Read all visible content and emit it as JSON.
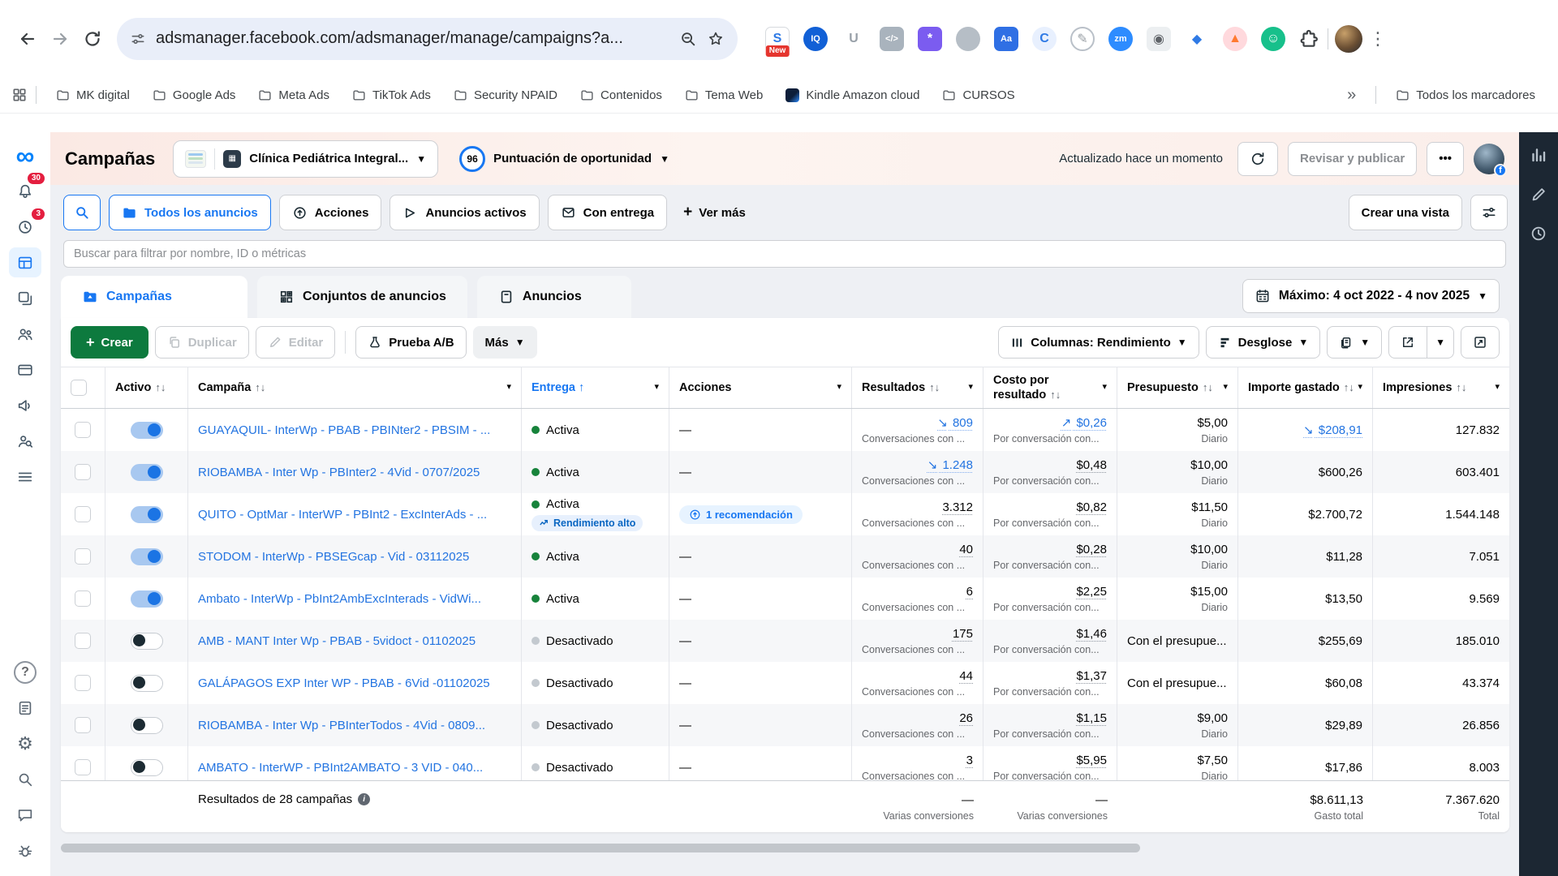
{
  "browser": {
    "url": "adsmanager.facebook.com/adsmanager/manage/campaigns?a...",
    "bookmarks": [
      "MK digital",
      "Google Ads",
      "Meta Ads",
      "TikTok Ads",
      "Security NPAID",
      "Contenidos",
      "Tema Web",
      "Kindle Amazon cloud",
      "CURSOS"
    ],
    "bookmarks_overflow": "»",
    "all_bookmarks_label": "Todos los marcadores",
    "extensions": [
      {
        "name": "sider",
        "glyph": "S",
        "shape": "square",
        "bg": "#ffffff",
        "fg": "#2f7ae5",
        "badge": "New"
      },
      {
        "name": "iq",
        "glyph": "IQ",
        "shape": "circle",
        "bg": "#1160d6",
        "fg": "#ffffff"
      },
      {
        "name": "u-reader",
        "glyph": "U",
        "shape": "plain",
        "bg": "",
        "fg": "#98a0a8"
      },
      {
        "name": "code-inspector",
        "glyph": "</>",
        "shape": "square",
        "bg": "#a9b3bd",
        "fg": "#ffffff"
      },
      {
        "name": "ai-burst",
        "glyph": "*",
        "shape": "square",
        "bg": "#7b5cf0",
        "fg": "#ffffff"
      },
      {
        "name": "pump",
        "glyph": "",
        "shape": "circle",
        "bg": "#b6bec6",
        "fg": "#ffffff"
      },
      {
        "name": "translate",
        "glyph": "Aa",
        "shape": "square",
        "bg": "#2f6fe4",
        "fg": "#ffffff"
      },
      {
        "name": "c-ring",
        "glyph": "C",
        "shape": "circle",
        "bg": "#e8f0fe",
        "fg": "#2f7ae5"
      },
      {
        "name": "pencil-tool",
        "glyph": "✎",
        "shape": "ring",
        "bg": "#ffffff",
        "fg": "#9aa0a6"
      },
      {
        "name": "zoom",
        "glyph": "zm",
        "shape": "circle",
        "bg": "#2d8cff",
        "fg": "#ffffff"
      },
      {
        "name": "photos",
        "glyph": "◉",
        "shape": "square",
        "bg": "#eceff1",
        "fg": "#5f6368"
      },
      {
        "name": "price-tag",
        "glyph": "◆",
        "shape": "plain",
        "bg": "",
        "fg": "#2f7ae5"
      },
      {
        "name": "flame",
        "glyph": "▲",
        "shape": "circle",
        "bg": "#ffd9dd",
        "fg": "#ff7a30"
      },
      {
        "name": "grammar-smile",
        "glyph": "☺",
        "shape": "circle",
        "bg": "#17c08b",
        "fg": "#ffffff"
      }
    ]
  },
  "app_header": {
    "title": "Campañas",
    "account_name": "Clínica Pediátrica Integral...",
    "score_value": "96",
    "score_label": "Puntuación de oportunidad",
    "updated_text": "Actualizado hace un momento",
    "review_publish_label": "Revisar y publicar"
  },
  "sidebar": {
    "items": [
      {
        "icon": "meta-logo"
      },
      {
        "icon": "notifications",
        "badge": "30"
      },
      {
        "icon": "updates",
        "badge": "3"
      },
      {
        "icon": "campaigns-table",
        "selected": true
      },
      {
        "icon": "media-library"
      },
      {
        "icon": "audiences"
      },
      {
        "icon": "billing"
      },
      {
        "icon": "ads-reporting"
      },
      {
        "icon": "audience-insights"
      },
      {
        "icon": "all-tools"
      }
    ],
    "bottom_items": [
      {
        "icon": "help"
      },
      {
        "icon": "notes"
      },
      {
        "icon": "settings"
      },
      {
        "icon": "search"
      },
      {
        "icon": "feedback"
      },
      {
        "icon": "bug"
      }
    ]
  },
  "right_rail": {
    "items": [
      {
        "icon": "insights-bars"
      },
      {
        "icon": "edit-pencil"
      },
      {
        "icon": "activity-clock"
      }
    ]
  },
  "filters": {
    "all_ads": "Todos los anuncios",
    "actions": "Acciones",
    "active_ads": "Anuncios activos",
    "with_delivery": "Con entrega",
    "see_more": "Ver más",
    "create_view": "Crear una vista",
    "search_placeholder": "Buscar para filtrar por nombre, ID o métricas"
  },
  "tabs": {
    "campaigns": "Campañas",
    "ad_sets": "Conjuntos de anuncios",
    "ads": "Anuncios"
  },
  "date_range": "Máximo: 4 oct 2022 - 4 nov 2025",
  "toolbar": {
    "create": "Crear",
    "duplicate": "Duplicar",
    "edit": "Editar",
    "ab_test": "Prueba A/B",
    "more": "Más",
    "columns": "Columnas: Rendimiento",
    "breakdown": "Desglose"
  },
  "table": {
    "headers": {
      "active": "Activo",
      "campaign": "Campaña",
      "delivery": "Entrega",
      "actions": "Acciones",
      "results": "Resultados",
      "cost_per_result": "Costo por resultado",
      "budget": "Presupuesto",
      "amount_spent": "Importe gastado",
      "impressions": "Impresiones"
    },
    "rows": [
      {
        "name": "GUAYAQUIL- InterWp - PBAB - PBINter2 - PBSIM - ...",
        "toggle_on": true,
        "status": "Activa",
        "status_badge": null,
        "action": "—",
        "action_pill": null,
        "results": "809",
        "results_trend": "down",
        "results_sub": "Conversaciones con ...",
        "cost": "$0,26",
        "cost_trend": "up",
        "cost_sub": "Por conversación con...",
        "budget": "$5,00",
        "budget_sub": "Diario",
        "spent": "$208,91",
        "spent_trend": "down",
        "impressions": "127.832"
      },
      {
        "name": "RIOBAMBA - Inter Wp - PBInter2 - 4Vid - 0707/2025",
        "toggle_on": true,
        "status": "Activa",
        "status_badge": null,
        "action": "—",
        "action_pill": null,
        "results": "1.248",
        "results_trend": "down",
        "results_sub": "Conversaciones con ...",
        "cost": "$0,48",
        "cost_trend": null,
        "cost_sub": "Por conversación con...",
        "budget": "$10,00",
        "budget_sub": "Diario",
        "spent": "$600,26",
        "spent_trend": null,
        "impressions": "603.401"
      },
      {
        "name": "QUITO - OptMar - InterWP - PBInt2 - ExcInterAds - ...",
        "toggle_on": true,
        "status": "Activa",
        "status_badge": "Rendimiento alto",
        "action": "—",
        "action_pill": "1 recomendación",
        "results": "3.312",
        "results_trend": null,
        "results_sub": "Conversaciones con ...",
        "cost": "$0,82",
        "cost_trend": null,
        "cost_sub": "Por conversación con...",
        "budget": "$11,50",
        "budget_sub": "Diario",
        "spent": "$2.700,72",
        "spent_trend": null,
        "impressions": "1.544.148"
      },
      {
        "name": "STODOM - InterWp - PBSEGcap - Vid - 03112025",
        "toggle_on": true,
        "status": "Activa",
        "status_badge": null,
        "action": "—",
        "action_pill": null,
        "results": "40",
        "results_trend": null,
        "results_sub": "Conversaciones con ...",
        "cost": "$0,28",
        "cost_trend": null,
        "cost_sub": "Por conversación con...",
        "budget": "$10,00",
        "budget_sub": "Diario",
        "spent": "$11,28",
        "spent_trend": null,
        "impressions": "7.051"
      },
      {
        "name": "Ambato - InterWp - PbInt2AmbExcInterads - VidWi...",
        "toggle_on": true,
        "status": "Activa",
        "status_badge": null,
        "action": "—",
        "action_pill": null,
        "results": "6",
        "results_trend": null,
        "results_sub": "Conversaciones con ...",
        "cost": "$2,25",
        "cost_trend": null,
        "cost_sub": "Por conversación con...",
        "budget": "$15,00",
        "budget_sub": "Diario",
        "spent": "$13,50",
        "spent_trend": null,
        "impressions": "9.569"
      },
      {
        "name": "AMB - MANT Inter Wp - PBAB - 5vidoct - 01102025",
        "toggle_on": false,
        "status": "Desactivado",
        "status_badge": null,
        "action": "—",
        "action_pill": null,
        "results": "175",
        "results_trend": null,
        "results_sub": "Conversaciones con ...",
        "cost": "$1,46",
        "cost_trend": null,
        "cost_sub": "Por conversación con...",
        "budget": "Con el presupue...",
        "budget_sub": null,
        "spent": "$255,69",
        "spent_trend": null,
        "impressions": "185.010"
      },
      {
        "name": "GALÁPAGOS EXP Inter WP - PBAB - 6Vid -01102025",
        "toggle_on": false,
        "status": "Desactivado",
        "status_badge": null,
        "action": "—",
        "action_pill": null,
        "results": "44",
        "results_trend": null,
        "results_sub": "Conversaciones con ...",
        "cost": "$1,37",
        "cost_trend": null,
        "cost_sub": "Por conversación con...",
        "budget": "Con el presupue...",
        "budget_sub": null,
        "spent": "$60,08",
        "spent_trend": null,
        "impressions": "43.374"
      },
      {
        "name": "RIOBAMBA - Inter Wp - PBInterTodos - 4Vid - 0809...",
        "toggle_on": false,
        "status": "Desactivado",
        "status_badge": null,
        "action": "—",
        "action_pill": null,
        "results": "26",
        "results_trend": null,
        "results_sub": "Conversaciones con ...",
        "cost": "$1,15",
        "cost_trend": null,
        "cost_sub": "Por conversación con...",
        "budget": "$9,00",
        "budget_sub": "Diario",
        "spent": "$29,89",
        "spent_trend": null,
        "impressions": "26.856"
      },
      {
        "name": "AMBATO - InterWP - PBInt2AMBATO - 3 VID - 040...",
        "toggle_on": false,
        "status": "Desactivado",
        "status_badge": null,
        "action": "—",
        "action_pill": null,
        "results": "3",
        "results_trend": null,
        "results_sub": "Conversaciones con ...",
        "cost": "$5,95",
        "cost_trend": null,
        "cost_sub": "Por conversación con...",
        "budget": "$7,50",
        "budget_sub": "Diario",
        "spent": "$17,86",
        "spent_trend": null,
        "impressions": "8.003"
      }
    ],
    "footer": {
      "summary": "Resultados de 28 campañas",
      "results": "—",
      "results_sub": "Varias conversiones",
      "cost": "—",
      "cost_sub": "Varias conversiones",
      "spent": "$8.611,13",
      "spent_sub": "Gasto total",
      "impressions": "7.367.620",
      "impressions_sub": "Total"
    }
  },
  "colors": {
    "accent": "#1877f2",
    "link": "#2374e1",
    "green_button": "#0d7a3e",
    "active_dot": "#17833b",
    "rail_bg": "#1c2733"
  }
}
